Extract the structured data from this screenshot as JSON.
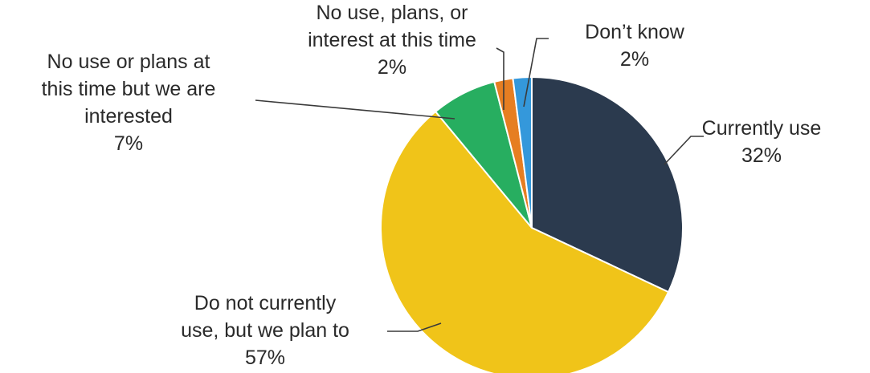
{
  "chart_data": {
    "type": "pie",
    "title": "",
    "slices": [
      {
        "label": "Currently use",
        "value": 32,
        "value_label": "32%",
        "color": "#2b3a4e"
      },
      {
        "label": "Do not currently use, but we plan to",
        "value": 57,
        "value_label": "57%",
        "color": "#f0c419"
      },
      {
        "label": "No use or plans at this time but we are interested",
        "value": 7,
        "value_label": "7%",
        "color": "#27ae60"
      },
      {
        "label": "No use, plans, or interest at this time",
        "value": 2,
        "value_label": "2%",
        "color": "#e67e22"
      },
      {
        "label": "Don’t know",
        "value": 2,
        "value_label": "2%",
        "color": "#3498db"
      }
    ],
    "label_lines": [
      [
        "Currently use"
      ],
      [
        "Do not currently",
        "use, but we plan to"
      ],
      [
        "No use or plans at",
        "this time but we are",
        "interested"
      ],
      [
        "No use, plans, or",
        "interest at this time"
      ],
      [
        "Don’t know"
      ]
    ],
    "start": "12 o'clock",
    "direction": "clockwise",
    "legend": "none"
  }
}
